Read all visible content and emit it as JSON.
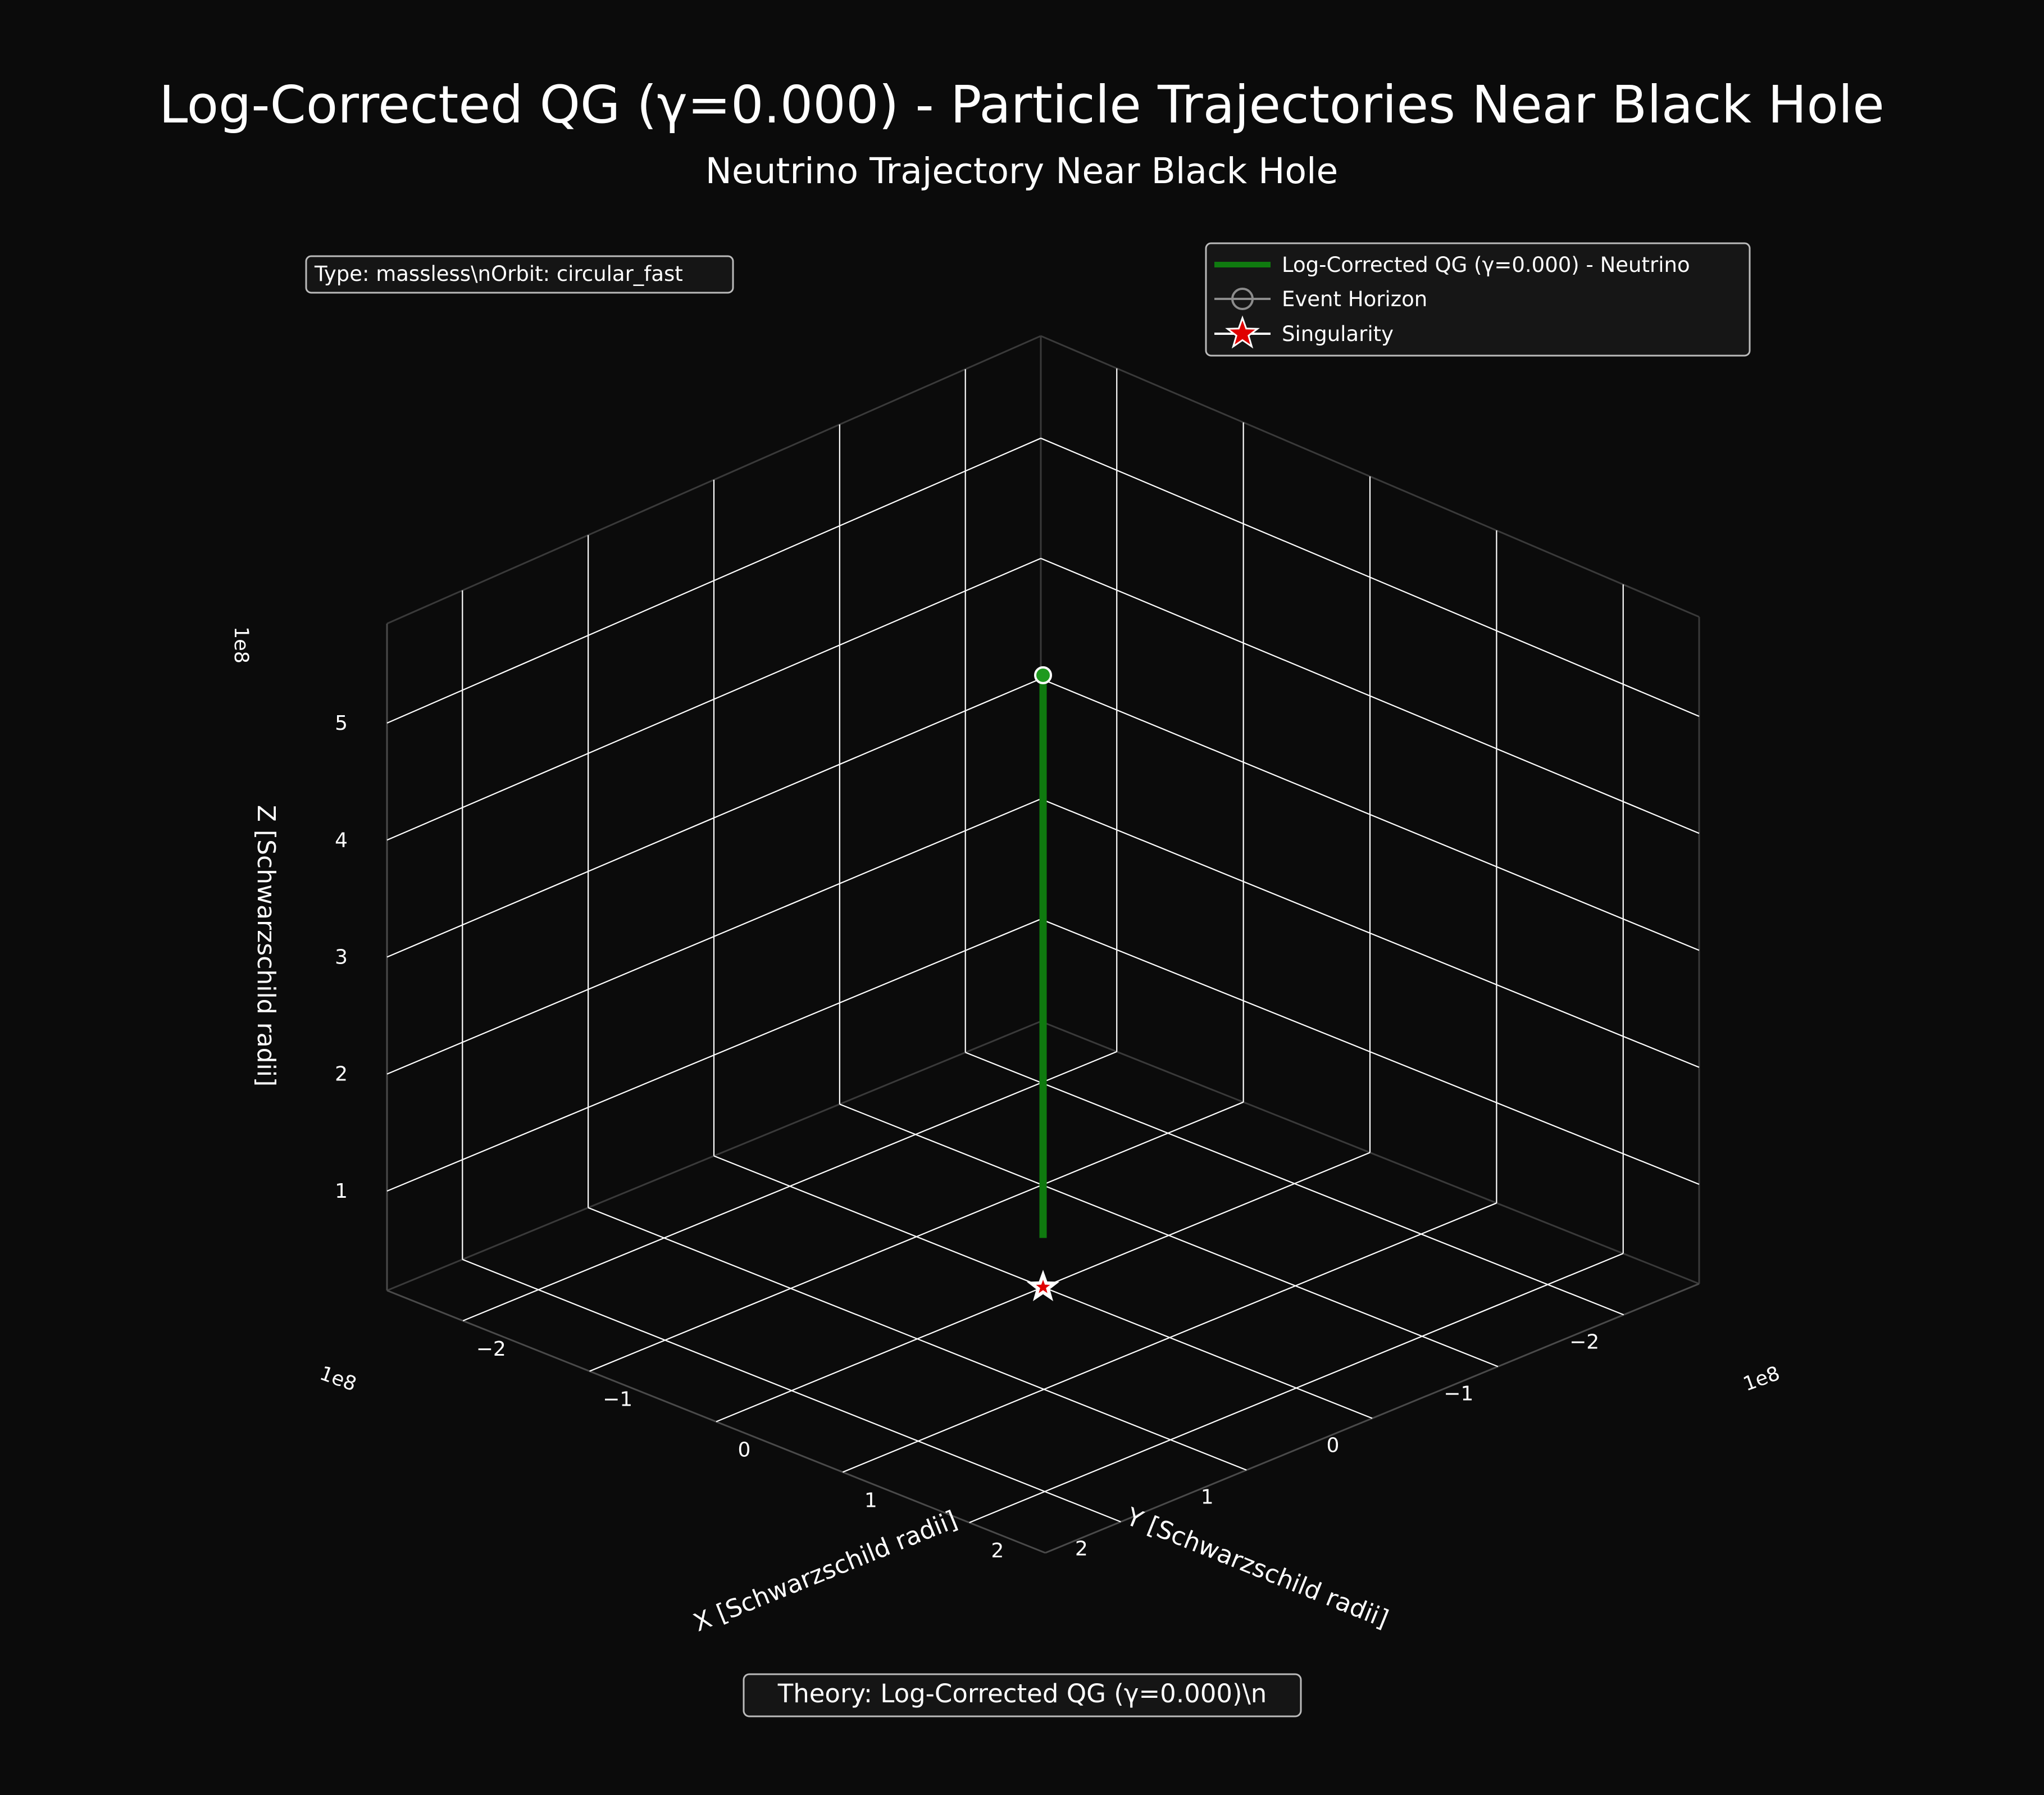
{
  "figure": {
    "title": "Log-Corrected QG (γ=0.000) - Particle Trajectories Near Black Hole",
    "background": "#0b0b0b",
    "text_color": "#ffffff",
    "grid_color": "#ffffff"
  },
  "info_box": {
    "text": "Type: massless\\nOrbit: circular_fast"
  },
  "footer_box": {
    "text": "Theory: Log-Corrected QG (γ=0.000)\\n"
  },
  "legend": {
    "placement": "upper right",
    "items": [
      {
        "label": "Log-Corrected QG (γ=0.000) - Neutrino",
        "symbol": "line",
        "color": "#0f7a0f"
      },
      {
        "label": "Event Horizon",
        "symbol": "circle-line",
        "color": "#8c8c8c"
      },
      {
        "label": "Singularity",
        "symbol": "star",
        "color": "#e00000"
      }
    ]
  },
  "chart_data": {
    "type": "line",
    "projection": "3d",
    "title": "Neutrino Trajectory Near Black Hole",
    "xlabel": "X [Schwarzschild radii]",
    "ylabel": "Y [Schwarzschild radii]",
    "zlabel": "Z [Schwarzschild radii]",
    "x_multiplier": "1e8",
    "y_multiplier": "1e8",
    "z_multiplier": "1e8",
    "xlim": [
      -260000000.0,
      260000000.0
    ],
    "ylim": [
      -260000000.0,
      260000000.0
    ],
    "zlim": [
      15000000.0,
      585000000.0
    ],
    "xticks": [
      -200000000,
      -100000000,
      0,
      100000000,
      200000000
    ],
    "xtick_labels": [
      "−2",
      "−1",
      "0",
      "1",
      "2"
    ],
    "yticks": [
      -200000000,
      -100000000,
      0,
      100000000,
      200000000
    ],
    "ytick_labels": [
      "−2",
      "−1",
      "0",
      "1",
      "2"
    ],
    "zticks": [
      100000000,
      200000000,
      300000000,
      400000000,
      500000000
    ],
    "ztick_labels": [
      "1",
      "2",
      "3",
      "4",
      "5"
    ],
    "grid": true,
    "view": {
      "elevation": 20,
      "azimuth": 45
    },
    "series": [
      {
        "name": "Log-Corrected QG (γ=0.000) - Neutrino",
        "color": "#0f7a0f",
        "x": [
          0,
          0
        ],
        "y": [
          0,
          0
        ],
        "z": [
          57000000.0,
          538000000.0
        ]
      }
    ],
    "markers": [
      {
        "name": "start",
        "x": 0,
        "y": 0,
        "z": 538000000.0,
        "shape": "circle",
        "color": "#1f9a1f"
      },
      {
        "name": "Singularity",
        "x": 0,
        "y": 0,
        "z": 15000000.0,
        "shape": "star",
        "color": "#e00000"
      }
    ]
  }
}
